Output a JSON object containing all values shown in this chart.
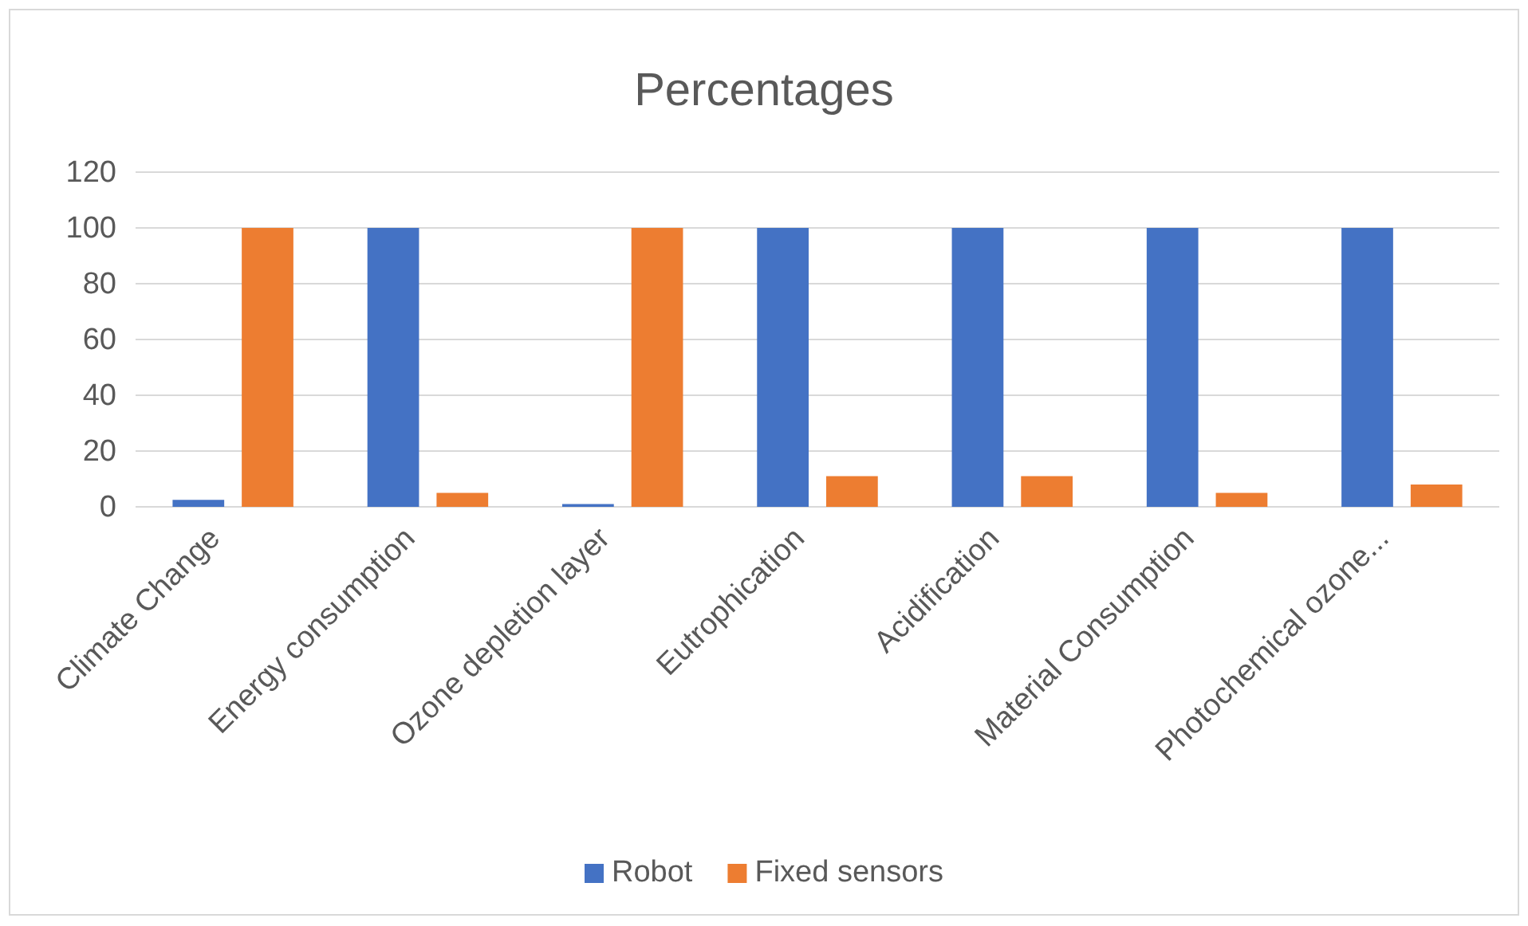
{
  "chart_data": {
    "type": "bar",
    "title": "Percentages",
    "categories": [
      "Climate Change",
      "Energy consumption",
      "Ozone depletion layer",
      "Eutrophication",
      "Acidification",
      "Material Consumption",
      "Photochemical ozone..."
    ],
    "series": [
      {
        "name": "Robot",
        "color": "#4472c4",
        "values": [
          2.5,
          100,
          1,
          100,
          100,
          100,
          100
        ]
      },
      {
        "name": "Fixed sensors",
        "color": "#ed7d31",
        "values": [
          100,
          5,
          100,
          11,
          11,
          5,
          8
        ]
      }
    ],
    "ylim": [
      0,
      120
    ],
    "yticks": [
      0,
      20,
      40,
      60,
      80,
      100,
      120
    ],
    "grid": "y",
    "legend": "bottom"
  }
}
